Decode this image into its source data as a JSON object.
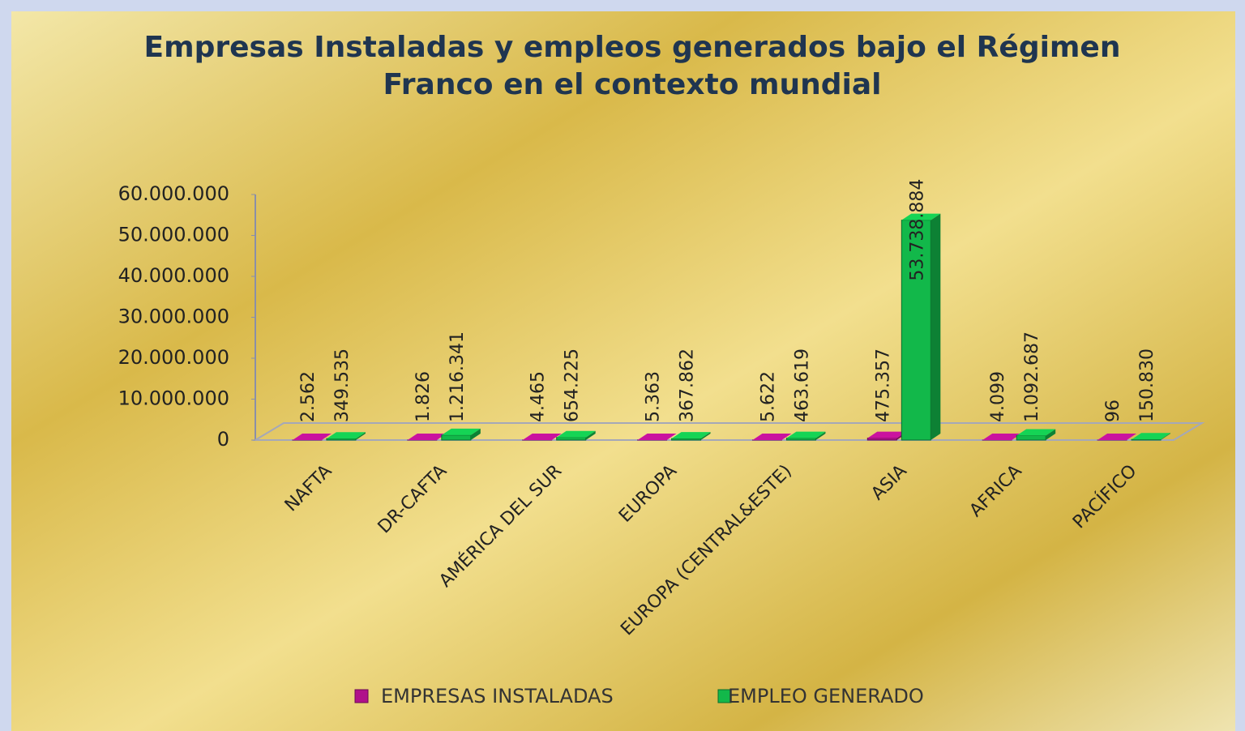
{
  "chart_data": {
    "type": "bar",
    "title": [
      "Empresas Instaladas y empleos generados bajo el Régimen",
      "Franco en el contexto mundial"
    ],
    "categories": [
      "NAFTA",
      "DR-CAFTA",
      "AMÉRICA DEL SUR",
      "EUROPA",
      "EUROPA (CENTRAL&ESTE)",
      "ASIA",
      "AFRICA",
      "PACÍFICO"
    ],
    "series": [
      {
        "name": "EMPRESAS INSTALADAS",
        "color": "#b0108a",
        "values": [
          2562,
          1826,
          4465,
          5363,
          5622,
          475357,
          4099,
          96
        ],
        "value_labels": [
          "2.562",
          "1.826",
          "4.465",
          "5.363",
          "5.622",
          "475.357",
          "4.099",
          "96"
        ]
      },
      {
        "name": "EMPLEO GENERADO",
        "color": "#12b84a",
        "values": [
          349535,
          1216341,
          654225,
          367862,
          463619,
          53738884,
          1092687,
          150830
        ],
        "value_labels": [
          "349.535",
          "1.216.341",
          "654.225",
          "367.862",
          "463.619",
          "53.738.884",
          "1.092.687",
          "150.830"
        ]
      }
    ],
    "ylim": [
      0,
      60000000
    ],
    "yticks": [
      0,
      {
        "value": 10000000,
        "label": "10.000.000"
      },
      {
        "value": 20000000,
        "label": "20.000.000"
      },
      {
        "value": 30000000,
        "label": "30.000.000"
      },
      {
        "value": 40000000,
        "label": "40.000.000"
      },
      {
        "value": 50000000,
        "label": "50.000.000"
      },
      {
        "value": 60000000,
        "label": "60.000.000"
      }
    ],
    "legend": "bottom"
  }
}
